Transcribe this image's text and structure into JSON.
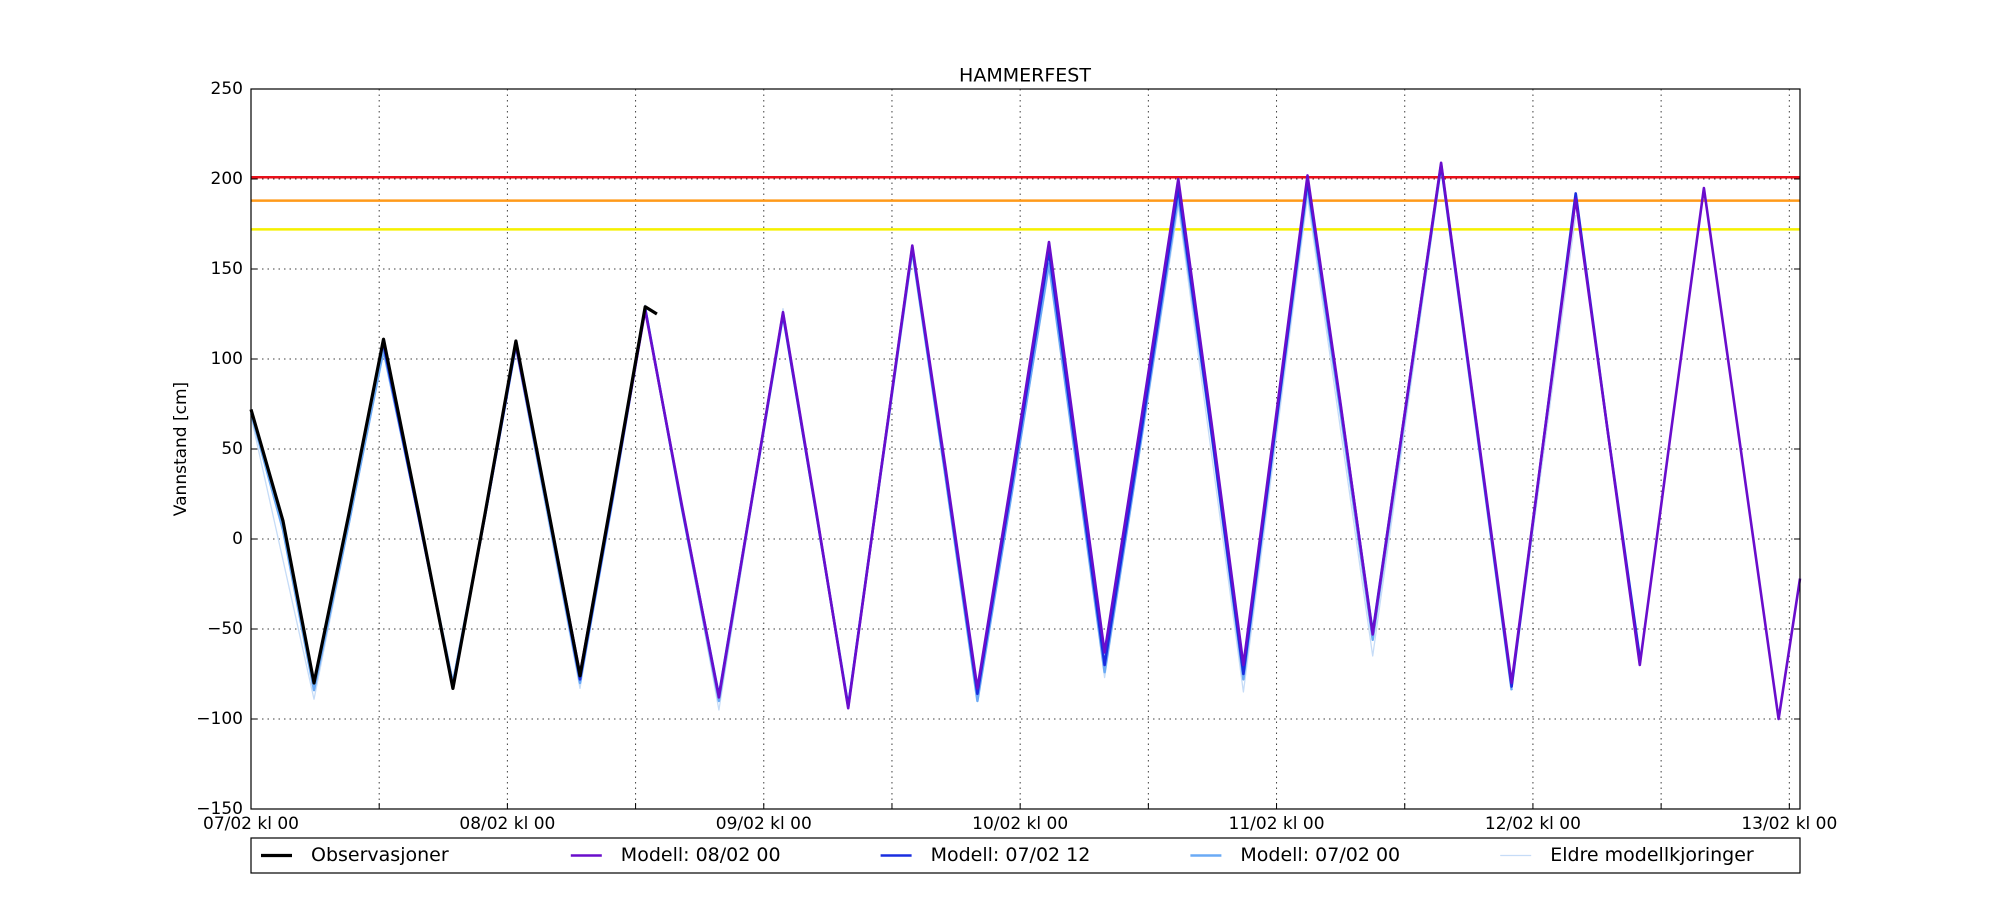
{
  "chart_data": {
    "type": "line",
    "title": "HAMMERFEST",
    "y_label": "Vannstand [cm]",
    "xlim": [
      0,
      145
    ],
    "ylim": [
      -150,
      250
    ],
    "xticks": [
      {
        "value": 0,
        "label": "07/02 kl 00"
      },
      {
        "value": 24,
        "label": "08/02 kl 00"
      },
      {
        "value": 48,
        "label": "09/02 kl 00"
      },
      {
        "value": 72,
        "label": "10/02 kl 00"
      },
      {
        "value": 96,
        "label": "11/02 kl 00"
      },
      {
        "value": 120,
        "label": "12/02 kl 00"
      },
      {
        "value": 144,
        "label": "13/02 kl 00"
      }
    ],
    "x_minor_grid": [
      12,
      36,
      60,
      84,
      108,
      132
    ],
    "yticks": [
      {
        "value": -150,
        "label": "−150"
      },
      {
        "value": -100,
        "label": "−100"
      },
      {
        "value": -50,
        "label": "−50"
      },
      0,
      50,
      100,
      150,
      200,
      250
    ],
    "grid": true,
    "legend": "bottom-outside",
    "hlines": [
      {
        "value": 201,
        "color": "#e8101a"
      },
      {
        "value": 188,
        "color": "#ff9a1a"
      },
      {
        "value": 172,
        "color": "#f5f000"
      }
    ],
    "series": [
      {
        "name": "Observasjoner",
        "color": "#000000",
        "x": [
          0,
          3,
          5.9,
          9.2,
          12.4,
          15.7,
          18.9,
          21.9,
          24.8,
          27.8,
          30.8,
          33.9,
          36.9,
          38
        ],
        "values": [
          72,
          10,
          -80,
          15,
          111,
          14,
          -83,
          14,
          110,
          17,
          -76,
          27,
          129,
          125
        ]
      },
      {
        "name": "Modell: 08/02 00",
        "color": "#6a0dcc",
        "x": [
          24.8,
          27.8,
          30.8,
          33.9,
          36.9,
          40.3,
          43.8,
          46.8,
          49.8,
          52.9,
          55.9,
          58.9,
          61.9,
          65,
          68,
          71.4,
          74.7,
          77.3,
          79.9,
          83.4,
          86.8,
          89.9,
          92.9,
          95.9,
          98.9,
          102,
          105,
          108.2,
          111.4,
          114.7,
          118,
          121,
          124,
          127,
          130,
          133,
          136,
          139.5,
          143,
          145
        ],
        "values": [
          108,
          17,
          -75,
          26,
          127,
          20,
          -88,
          19,
          126,
          16,
          -94,
          35,
          163,
          40,
          -83,
          41,
          165,
          51,
          -63,
          69,
          200,
          65,
          -70,
          66,
          202,
          75,
          -53,
          78,
          209,
          65,
          -80,
          55,
          189,
          60,
          -70,
          63,
          195,
          48,
          -100,
          -22
        ]
      },
      {
        "name": "Modell: 07/02 12",
        "color": "#1a2ee0",
        "x": [
          12.4,
          15.7,
          18.9,
          21.9,
          24.8,
          27.8,
          30.8,
          33.9,
          36.9,
          40.3,
          43.8,
          46.8,
          49.8,
          52.9,
          55.9,
          58.9,
          61.9,
          65,
          68,
          71.4,
          74.7,
          77.3,
          79.9,
          83.4,
          86.8,
          89.9,
          92.9,
          95.9,
          98.9,
          102,
          105,
          108.2,
          111.4,
          114.7,
          118,
          121,
          124,
          127,
          130
        ],
        "values": [
          108,
          12,
          -82,
          13,
          108,
          16,
          -78,
          25,
          128,
          19,
          -87,
          19,
          125,
          15,
          -93,
          35,
          162,
          38,
          -86,
          37,
          160,
          45,
          -70,
          62,
          195,
          60,
          -75,
          62,
          199,
          74,
          -52,
          78,
          208,
          64,
          -82,
          55,
          192,
          60,
          -66
        ]
      },
      {
        "name": "Modell: 07/02 00",
        "color": "#6aaaf5",
        "x": [
          0,
          3,
          5.9,
          9.2,
          12.4,
          15.7,
          18.9,
          21.9,
          24.8,
          27.8,
          30.8,
          33.9,
          36.9,
          40.3,
          43.8,
          46.8,
          49.8,
          52.9,
          55.9,
          58.9,
          61.9,
          65,
          68,
          71.4,
          74.7,
          77.3,
          79.9,
          83.4,
          86.8,
          89.9,
          92.9,
          95.9,
          98.9,
          102,
          105,
          108.2,
          111.4,
          114.7,
          118
        ],
        "values": [
          70,
          5,
          -84,
          10,
          105,
          12,
          -80,
          13,
          107,
          14,
          -80,
          23,
          128,
          18,
          -90,
          18,
          124,
          15,
          -93,
          34,
          160,
          35,
          -90,
          32,
          153,
          40,
          -74,
          58,
          190,
          58,
          -78,
          60,
          196,
          70,
          -56,
          76,
          207,
          62,
          -84
        ]
      },
      {
        "name": "Eldre modellkjoringer",
        "color": "#c6dcf7",
        "x": [
          0,
          5.9,
          12.4,
          18.9,
          24.8,
          30.8,
          36.9,
          43.8,
          49.8,
          55.9,
          61.9,
          68,
          74.7,
          79.9,
          86.8,
          92.9,
          98.9,
          105,
          111.4,
          118,
          124
        ],
        "values": [
          68,
          -89,
          103,
          -78,
          105,
          -83,
          130,
          -95,
          128,
          -90,
          160,
          -90,
          150,
          -77,
          185,
          -85,
          190,
          -65,
          205,
          -84,
          180
        ]
      }
    ]
  }
}
